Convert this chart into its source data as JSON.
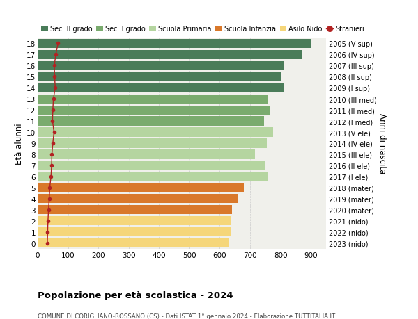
{
  "ages": [
    18,
    17,
    16,
    15,
    14,
    13,
    12,
    11,
    10,
    9,
    8,
    7,
    6,
    5,
    4,
    3,
    2,
    1,
    0
  ],
  "years": [
    "2005 (V sup)",
    "2006 (IV sup)",
    "2007 (III sup)",
    "2008 (II sup)",
    "2009 (I sup)",
    "2010 (III med)",
    "2011 (II med)",
    "2012 (I med)",
    "2013 (V ele)",
    "2014 (IV ele)",
    "2015 (III ele)",
    "2016 (II ele)",
    "2017 (I ele)",
    "2018 (mater)",
    "2019 (mater)",
    "2020 (mater)",
    "2021 (nido)",
    "2022 (nido)",
    "2023 (nido)"
  ],
  "values": [
    900,
    870,
    810,
    800,
    810,
    760,
    765,
    745,
    775,
    755,
    715,
    750,
    758,
    680,
    660,
    640,
    635,
    635,
    630
  ],
  "foreigners": [
    67,
    60,
    55,
    56,
    58,
    52,
    50,
    49,
    54,
    50,
    47,
    46,
    44,
    40,
    38,
    36,
    34,
    33,
    32
  ],
  "bar_colors": [
    "#4a7c59",
    "#4a7c59",
    "#4a7c59",
    "#4a7c59",
    "#4a7c59",
    "#7aab6e",
    "#7aab6e",
    "#7aab6e",
    "#b5d5a0",
    "#b5d5a0",
    "#b5d5a0",
    "#b5d5a0",
    "#b5d5a0",
    "#d9782a",
    "#d9782a",
    "#d9782a",
    "#f5d67a",
    "#f5d67a",
    "#f5d67a"
  ],
  "legend_labels": [
    "Sec. II grado",
    "Sec. I grado",
    "Scuola Primaria",
    "Scuola Infanzia",
    "Asilo Nido",
    "Stranieri"
  ],
  "legend_colors": [
    "#4a7c59",
    "#7aab6e",
    "#b5d5a0",
    "#d9782a",
    "#f5d67a",
    "#c0392b"
  ],
  "title": "Popolazione per età scolastica - 2024",
  "subtitle": "COMUNE DI CORIGLIANO-ROSSANO (CS) - Dati ISTAT 1° gennaio 2024 - Elaborazione TUTTITALIA.IT",
  "ylabel_left": "Età alunni",
  "ylabel_right": "Anni di nascita",
  "xlim": [
    0,
    950
  ],
  "xticks": [
    0,
    100,
    200,
    300,
    400,
    500,
    600,
    700,
    800,
    900
  ],
  "bg_color": "#ffffff",
  "bar_bg_color": "#f0f0eb",
  "line_color": "#b22222",
  "dot_color": "#b22222"
}
